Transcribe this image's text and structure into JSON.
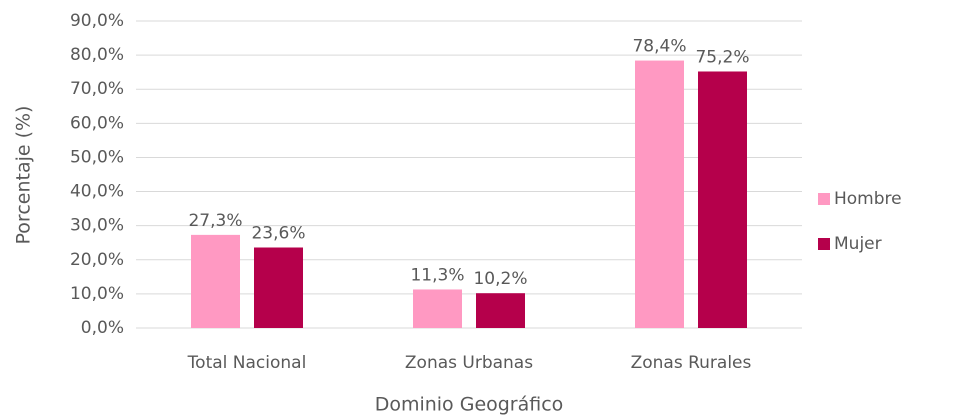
{
  "chart_data": {
    "type": "bar",
    "categories": [
      "Total Nacional",
      "Zonas Urbanas",
      "Zonas Rurales"
    ],
    "series": [
      {
        "name": "Hombre",
        "color": "#ff99c2",
        "values": [
          27.3,
          11.3,
          78.4
        ],
        "value_labels": [
          "27,3%",
          "11,3%",
          "78,4%"
        ]
      },
      {
        "name": "Mujer",
        "color": "#b5004b",
        "values": [
          23.6,
          10.2,
          75.2
        ],
        "value_labels": [
          "23,6%",
          "10,2%",
          "75,2%"
        ]
      }
    ],
    "xlabel": "Dominio Geográfico",
    "ylabel": "Porcentaje (%)",
    "ylim": [
      0,
      90
    ],
    "yticks": [
      {
        "value": 0,
        "label": "0,0%"
      },
      {
        "value": 10,
        "label": "10,0%"
      },
      {
        "value": 20,
        "label": "20,0%"
      },
      {
        "value": 30,
        "label": "30,0%"
      },
      {
        "value": 40,
        "label": "40,0%"
      },
      {
        "value": 50,
        "label": "50,0%"
      },
      {
        "value": 60,
        "label": "60,0%"
      },
      {
        "value": 70,
        "label": "70,0%"
      },
      {
        "value": 80,
        "label": "80,0%"
      },
      {
        "value": 90,
        "label": "90,0%"
      }
    ],
    "grid": true,
    "legend": "right"
  }
}
